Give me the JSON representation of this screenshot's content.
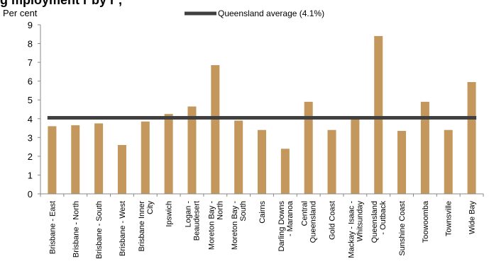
{
  "chart_data": {
    "type": "bar",
    "title": "",
    "ylabel": "Per cent",
    "xlabel": "",
    "ylim": [
      0,
      9
    ],
    "yticks": [
      0,
      1,
      2,
      3,
      4,
      5,
      6,
      7,
      8,
      9
    ],
    "grid": false,
    "legend_position": "top-center",
    "categories": [
      [
        "Brisbane - East"
      ],
      [
        "Brisbane - North"
      ],
      [
        "Brisbane - South"
      ],
      [
        "Brisbane - West"
      ],
      [
        "Brisbane Inner",
        "City"
      ],
      [
        "Ipswich"
      ],
      [
        "Logan -",
        "Beaudesert"
      ],
      [
        "Moreton Bay -",
        "North"
      ],
      [
        "Moreton Bay -",
        "South"
      ],
      [
        "Cairns"
      ],
      [
        "Darling Downs",
        "- Maranoa"
      ],
      [
        "Central",
        "Queensland"
      ],
      [
        "Gold Coast"
      ],
      [
        "Mackay - Isaac -",
        "Whitsunday"
      ],
      [
        "Queensland",
        "- Outback"
      ],
      [
        "Sunshine Coast"
      ],
      [
        "Toowoomba"
      ],
      [
        "Townsville"
      ],
      [
        "Wide Bay"
      ]
    ],
    "series": [
      {
        "values": [
          3.6,
          3.65,
          3.75,
          2.6,
          3.85,
          4.25,
          4.65,
          6.85,
          3.9,
          3.4,
          2.4,
          4.9,
          3.4,
          4.0,
          8.4,
          3.35,
          4.9,
          3.4,
          5.95
        ],
        "color": "#c4975c"
      }
    ],
    "reference_line": {
      "name": "Queensland average (4.1%)",
      "value": 4.05,
      "color": "#404040"
    }
  },
  "partial_title": "g        mployment r   by r   ,"
}
